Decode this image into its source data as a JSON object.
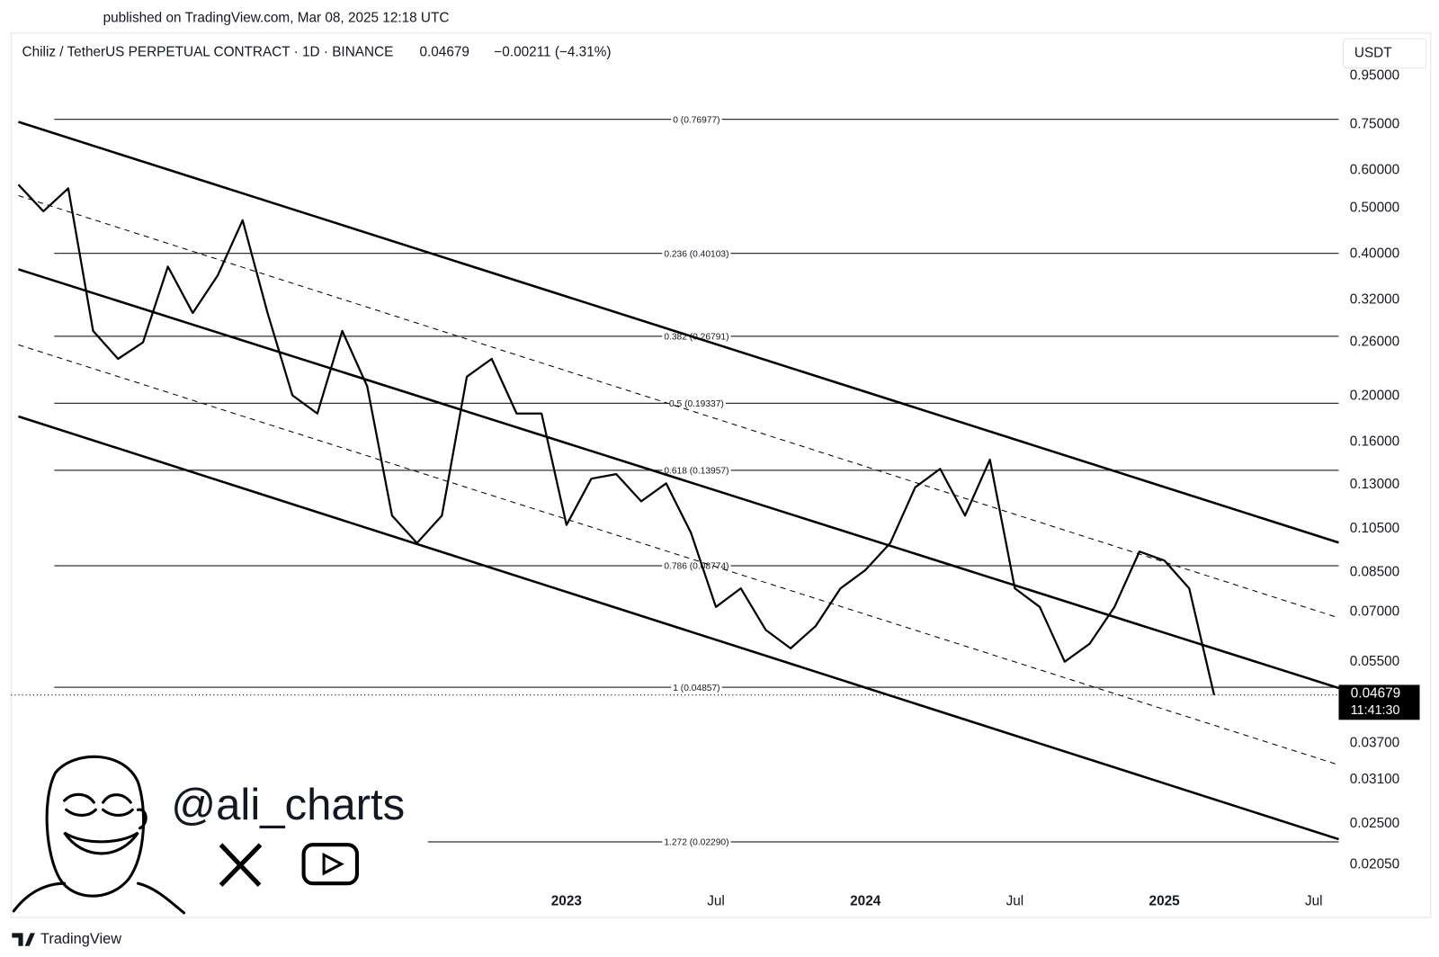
{
  "published": "published on TradingView.com, Mar 08, 2025 12:18 UTC",
  "header": {
    "symbol": "Chiliz / TetherUS PERPETUAL CONTRACT · 1D · BINANCE",
    "last": "0.04679",
    "change": "−0.00211 (−4.31%)",
    "currency": "USDT"
  },
  "countdown": "11:41:30",
  "watermark": "@ali_charts",
  "brand": "TradingView",
  "chart_data": {
    "type": "line",
    "log_scale": true,
    "grid": false,
    "color": "#000000",
    "x": [
      "2021-03",
      "2021-04",
      "2021-05",
      "2021-06",
      "2021-07",
      "2021-08",
      "2021-09",
      "2021-10",
      "2021-11",
      "2021-12",
      "2022-01",
      "2022-02",
      "2022-03",
      "2022-04",
      "2022-05",
      "2022-06",
      "2022-07",
      "2022-08",
      "2022-09",
      "2022-10",
      "2022-11",
      "2022-12",
      "2023-01",
      "2023-02",
      "2023-03",
      "2023-04",
      "2023-05",
      "2023-06",
      "2023-07",
      "2023-08",
      "2023-09",
      "2023-10",
      "2023-11",
      "2023-12",
      "2024-01",
      "2024-02",
      "2024-03",
      "2024-04",
      "2024-05",
      "2024-06",
      "2024-07",
      "2024-08",
      "2024-09",
      "2024-10",
      "2024-11",
      "2024-12",
      "2025-01",
      "2025-02",
      "2025-03"
    ],
    "values": [
      0.56,
      0.492,
      0.55,
      0.275,
      0.24,
      0.26,
      0.376,
      0.3,
      0.36,
      0.471,
      0.3,
      0.201,
      0.184,
      0.275,
      0.21,
      0.112,
      0.098,
      0.112,
      0.22,
      0.24,
      0.184,
      0.184,
      0.107,
      0.134,
      0.137,
      0.12,
      0.131,
      0.103,
      0.0718,
      0.0786,
      0.0642,
      0.0587,
      0.0654,
      0.0786,
      0.0859,
      0.098,
      0.1285,
      0.1406,
      0.112,
      0.147,
      0.0786,
      0.0718,
      0.055,
      0.06,
      0.0718,
      0.094,
      0.09,
      0.0786,
      0.04679
    ],
    "xlim": [
      "2021-03",
      "2025-08"
    ],
    "xticks": [
      {
        "value": "2023-01",
        "label": "2023"
      },
      {
        "value": "2023-07",
        "label": "Jul"
      },
      {
        "value": "2024-01",
        "label": "2024"
      },
      {
        "value": "2024-07",
        "label": "Jul"
      },
      {
        "value": "2025-01",
        "label": "2025"
      },
      {
        "value": "2025-07",
        "label": "Jul"
      }
    ],
    "ylim": [
      0.016,
      1.16
    ],
    "yticks": [
      {
        "value": 0.95,
        "label": "0.95000"
      },
      {
        "value": 0.75,
        "label": "0.75000"
      },
      {
        "value": 0.6,
        "label": "0.60000"
      },
      {
        "value": 0.5,
        "label": "0.50000"
      },
      {
        "value": 0.4,
        "label": "0.40000"
      },
      {
        "value": 0.32,
        "label": "0.32000"
      },
      {
        "value": 0.26,
        "label": "0.26000"
      },
      {
        "value": 0.2,
        "label": "0.20000"
      },
      {
        "value": 0.16,
        "label": "0.16000"
      },
      {
        "value": 0.13,
        "label": "0.13000"
      },
      {
        "value": 0.105,
        "label": "0.10500"
      },
      {
        "value": 0.085,
        "label": "0.08500"
      },
      {
        "value": 0.07,
        "label": "0.07000"
      },
      {
        "value": 0.055,
        "label": "0.05500"
      },
      {
        "value": 0.037,
        "label": "0.03700"
      },
      {
        "value": 0.031,
        "label": "0.03100"
      },
      {
        "value": 0.025,
        "label": "0.02500"
      },
      {
        "value": 0.0205,
        "label": "0.02050"
      }
    ],
    "fib_levels": [
      {
        "label": "0 (0.76977)",
        "value": 0.76977
      },
      {
        "label": "0.236 (0.40103)",
        "value": 0.40103
      },
      {
        "label": "0.382 (0.26791)",
        "value": 0.26791
      },
      {
        "label": "0.5 (0.19337)",
        "value": 0.19337
      },
      {
        "label": "0.618 (0.13957)",
        "value": 0.13957
      },
      {
        "label": "0.786 (0.08774)",
        "value": 0.08774
      },
      {
        "label": "1 (0.04857)",
        "value": 0.04857
      },
      {
        "label": "1.272 (0.02290)",
        "value": 0.0229
      }
    ],
    "channel": [
      {
        "style": "solid",
        "x": [
          "2021-03",
          "2025-08"
        ],
        "values": [
          0.76,
          0.0982
        ]
      },
      {
        "style": "dashed",
        "x": [
          "2021-03",
          "2025-08"
        ],
        "values": [
          0.531,
          0.0681
        ]
      },
      {
        "style": "solid",
        "x": [
          "2021-03",
          "2025-08"
        ],
        "values": [
          0.371,
          0.0484
        ]
      },
      {
        "style": "dashed",
        "x": [
          "2021-03",
          "2025-08"
        ],
        "values": [
          0.257,
          0.0333
        ]
      },
      {
        "style": "solid",
        "x": [
          "2021-03",
          "2025-08"
        ],
        "values": [
          0.1814,
          0.0232
        ]
      }
    ]
  }
}
